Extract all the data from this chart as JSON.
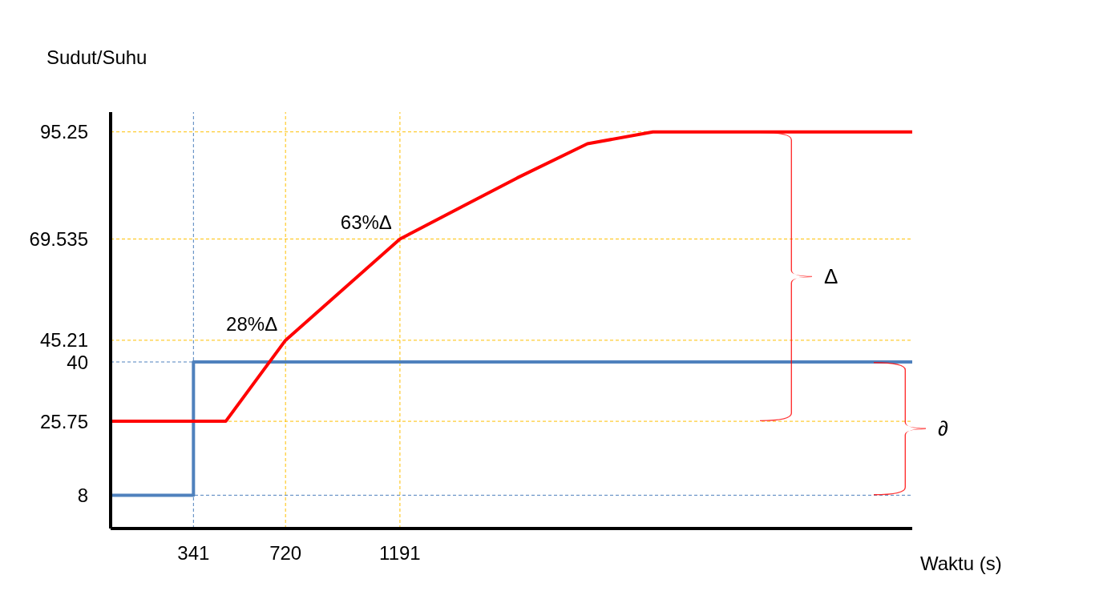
{
  "chart_data": {
    "type": "line",
    "xlabel": "Waktu (s)",
    "ylabel": "Sudut/Suhu",
    "xlim": [
      0,
      3300
    ],
    "ylim": [
      0,
      100
    ],
    "xticks": [
      341,
      720,
      1191
    ],
    "yticks": [
      8,
      25.75,
      40,
      45.21,
      69.535,
      95.25
    ],
    "marker": "none",
    "series": [
      {
        "type": "step",
        "color": "#4f81bd",
        "x": [
          0,
          341,
          3300
        ],
        "values": [
          8,
          40,
          40
        ]
      },
      {
        "type": "line",
        "color": "#ff0000",
        "x": [
          0,
          474,
          720,
          1191,
          1674,
          1963,
          2232,
          3300
        ],
        "values": [
          25.75,
          25.75,
          45.21,
          69.535,
          84.2,
          92.4,
          95.25,
          95.25
        ]
      }
    ],
    "ref_lines": [
      {
        "axis": "y",
        "value": 95.25,
        "color": "#ffc000",
        "line_style": "dashed"
      },
      {
        "axis": "y",
        "value": 69.535,
        "color": "#ffc000",
        "line_style": "dashed"
      },
      {
        "axis": "y",
        "value": 45.21,
        "color": "#ffc000",
        "line_style": "dashed"
      },
      {
        "axis": "y",
        "value": 40,
        "color": "#4f81bd",
        "line_style": "dashed"
      },
      {
        "axis": "y",
        "value": 25.75,
        "color": "#ffc000",
        "line_style": "dashed"
      },
      {
        "axis": "y",
        "value": 8,
        "color": "#4f81bd",
        "line_style": "dashed"
      },
      {
        "axis": "x",
        "value": 341,
        "color": "#4f81bd",
        "line_style": "dashed"
      },
      {
        "axis": "x",
        "value": 720,
        "color": "#ffc000",
        "line_style": "dashed"
      },
      {
        "axis": "x",
        "value": 1191,
        "color": "#ffc000",
        "line_style": "dashed"
      }
    ],
    "annotations": [
      {
        "text": "28%Δ",
        "x": 720,
        "y": 45.21
      },
      {
        "text": "63%Δ",
        "x": 1191,
        "y": 69.535
      },
      "Δ",
      "∂"
    ]
  }
}
